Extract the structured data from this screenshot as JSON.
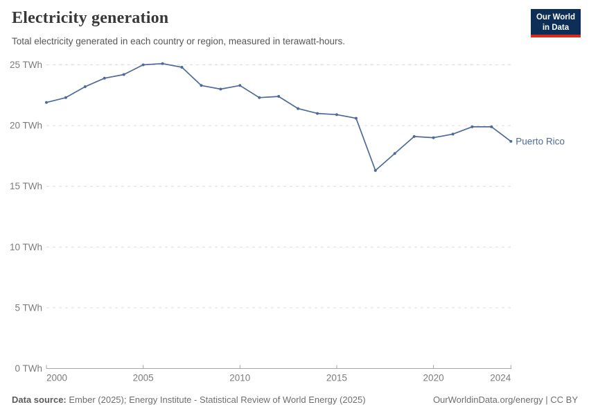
{
  "header": {
    "title": "Electricity generation",
    "subtitle": "Total electricity generated in each country or region, measured in terawatt-hours.",
    "logo": {
      "line1": "Our World",
      "line2": "in Data"
    }
  },
  "chart_data": {
    "type": "line",
    "title": "Electricity generation",
    "xlabel": "",
    "ylabel": "TWh",
    "x": [
      2000,
      2001,
      2002,
      2003,
      2004,
      2005,
      2006,
      2007,
      2008,
      2009,
      2010,
      2011,
      2012,
      2013,
      2014,
      2015,
      2016,
      2017,
      2018,
      2019,
      2020,
      2021,
      2022,
      2023,
      2024
    ],
    "series": [
      {
        "name": "Puerto Rico",
        "color": "#4c6a9c",
        "values": [
          21.9,
          22.3,
          23.2,
          23.9,
          24.2,
          25.0,
          25.1,
          24.8,
          23.3,
          23.0,
          23.3,
          22.3,
          22.4,
          21.4,
          21.0,
          20.9,
          20.6,
          16.3,
          17.7,
          19.1,
          19.0,
          19.3,
          19.9,
          19.9,
          18.7
        ]
      }
    ],
    "xlim": [
      2000,
      2024
    ],
    "ylim": [
      0,
      25
    ],
    "xticks": [
      {
        "value": 2000,
        "label": "2000"
      },
      {
        "value": 2005,
        "label": "2005"
      },
      {
        "value": 2010,
        "label": "2010"
      },
      {
        "value": 2015,
        "label": "2015"
      },
      {
        "value": 2020,
        "label": "2020"
      },
      {
        "value": 2024,
        "label": "2024"
      }
    ],
    "yticks": [
      {
        "value": 0,
        "label": "0 TWh"
      },
      {
        "value": 5,
        "label": "5 TWh"
      },
      {
        "value": 10,
        "label": "10 TWh"
      },
      {
        "value": 15,
        "label": "15 TWh"
      },
      {
        "value": 20,
        "label": "20 TWh"
      },
      {
        "value": 25,
        "label": "25 TWh"
      }
    ],
    "grid": "horizontal-dashed",
    "legend_position": "end-of-line-label"
  },
  "footer": {
    "sources_label": "Data source:",
    "sources": "Ember (2025); Energy Institute - Statistical Review of World Energy (2025)",
    "link": "OurWorldinData.org/energy | CC BY"
  },
  "colors": {
    "line": "#4c6a9c",
    "logo_bg": "#0d2e57",
    "logo_red": "#dc2a1d",
    "gridline": "#dcdcdc",
    "axis": "#a5a5a5",
    "tick_label": "#7b7b7b"
  }
}
